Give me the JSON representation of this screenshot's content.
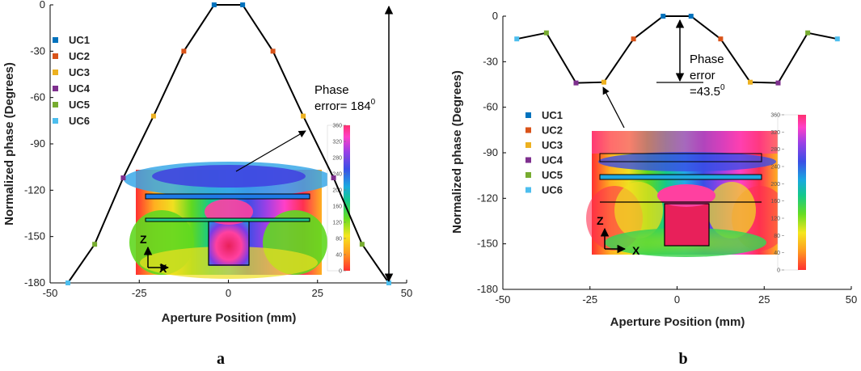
{
  "figure": {
    "panel_labels": [
      "a",
      "b"
    ]
  },
  "chart_data": [
    {
      "type": "line",
      "panel": "a",
      "xlabel": "Aperture Position (mm)",
      "ylabel": "Normalized phase (Degrees)",
      "xlim": [
        -50,
        50
      ],
      "ylim": [
        -180,
        0
      ],
      "xticks": [
        -50,
        -25,
        0,
        25,
        50
      ],
      "yticks": [
        0,
        -30,
        -60,
        -90,
        -120,
        -150,
        -180
      ],
      "grid": false,
      "legend_position": "top-left",
      "legend": [
        {
          "name": "UC1",
          "color": "#0072BD"
        },
        {
          "name": "UC2",
          "color": "#D95319"
        },
        {
          "name": "UC3",
          "color": "#EDB120"
        },
        {
          "name": "UC4",
          "color": "#7E2F8E"
        },
        {
          "name": "UC5",
          "color": "#77AC30"
        },
        {
          "name": "UC6",
          "color": "#4DBEEE"
        }
      ],
      "series": [
        {
          "x": [
            -45,
            -37.5,
            -29.5,
            -21,
            -12.5,
            -4,
            4,
            12.5,
            21,
            29.5,
            37.5,
            45
          ],
          "y": [
            -180,
            -155,
            -112,
            -72,
            -30,
            0,
            0,
            -30,
            -72,
            -112,
            -155,
            -180
          ],
          "marker_colors": [
            "#4DBEEE",
            "#77AC30",
            "#7E2F8E",
            "#EDB120",
            "#D95319",
            "#0072BD",
            "#0072BD",
            "#D95319",
            "#EDB120",
            "#7E2F8E",
            "#77AC30",
            "#4DBEEE"
          ]
        }
      ],
      "annotation": {
        "text_line1": "Phase",
        "text_line2": "error= 184",
        "superscript": "0"
      },
      "colorbar": {
        "min": 0,
        "max": 360,
        "ticks": [
          0,
          40,
          80,
          120,
          160,
          200,
          240,
          280,
          320,
          360
        ]
      },
      "inset_axes": {
        "vertical": "Z",
        "horizontal": "X"
      }
    },
    {
      "type": "line",
      "panel": "b",
      "xlabel": "Aperture Position (mm)",
      "ylabel": "Normalized phase (Degrees)",
      "xlim": [
        -50,
        50
      ],
      "ylim": [
        -180,
        0
      ],
      "xticks": [
        -50,
        -25,
        0,
        25,
        50
      ],
      "yticks": [
        0,
        -30,
        -60,
        -90,
        -120,
        -150,
        -180
      ],
      "grid": false,
      "legend_position": "center-left",
      "legend": [
        {
          "name": "UC1",
          "color": "#0072BD"
        },
        {
          "name": "UC2",
          "color": "#D95319"
        },
        {
          "name": "UC3",
          "color": "#EDB120"
        },
        {
          "name": "UC4",
          "color": "#7E2F8E"
        },
        {
          "name": "UC5",
          "color": "#77AC30"
        },
        {
          "name": "UC6",
          "color": "#4DBEEE"
        }
      ],
      "series": [
        {
          "x": [
            -46,
            -37.5,
            -29,
            -21,
            -12.5,
            -4,
            4,
            12.5,
            21,
            29,
            37.5,
            46
          ],
          "y": [
            -15,
            -11,
            -44,
            -43.5,
            -15,
            0,
            0,
            -15,
            -43.5,
            -44,
            -11,
            -15
          ],
          "marker_colors": [
            "#4DBEEE",
            "#77AC30",
            "#7E2F8E",
            "#EDB120",
            "#D95319",
            "#0072BD",
            "#0072BD",
            "#D95319",
            "#EDB120",
            "#7E2F8E",
            "#77AC30",
            "#4DBEEE"
          ]
        }
      ],
      "annotation": {
        "text_line1": "Phase",
        "text_line2": "error",
        "text_line3": "=43.5",
        "superscript": "0"
      },
      "colorbar": {
        "min": 0,
        "max": 360,
        "ticks": [
          0,
          40,
          80,
          120,
          160,
          200,
          240,
          280,
          320,
          360
        ]
      },
      "inset_axes": {
        "vertical": "Z",
        "horizontal": "X"
      }
    }
  ]
}
